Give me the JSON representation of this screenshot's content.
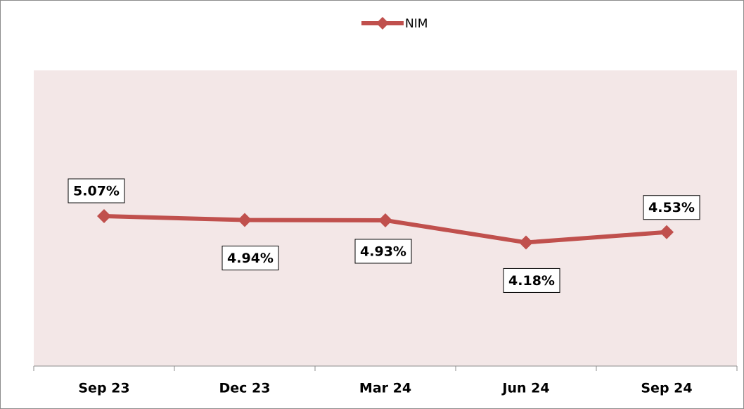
{
  "chart_data": {
    "type": "line",
    "categories": [
      "Sep 23",
      "Dec 23",
      "Mar 24",
      "Jun 24",
      "Sep 24"
    ],
    "series": [
      {
        "name": "NIM",
        "color": "#c0504d",
        "values": [
          5.07,
          4.94,
          4.93,
          4.18,
          4.53
        ],
        "value_labels": [
          "5.07%",
          "4.94%",
          "4.93%",
          "4.18%",
          "4.53%"
        ]
      }
    ],
    "ylim": [
      0,
      10
    ],
    "legend": "top"
  }
}
